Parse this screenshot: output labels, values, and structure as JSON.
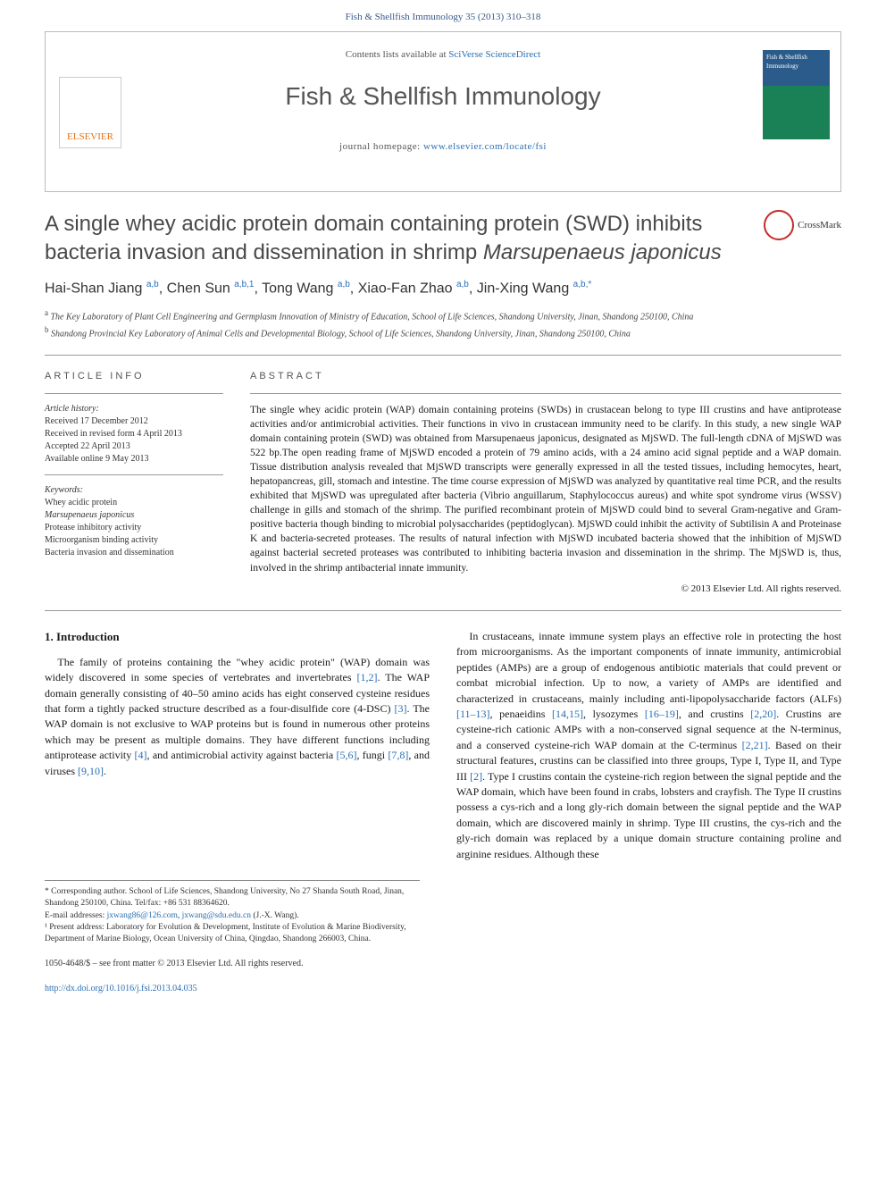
{
  "citation": "Fish & Shellfish Immunology 35 (2013) 310–318",
  "masthead": {
    "contents_line_prefix": "Contents lists available at ",
    "contents_link": "SciVerse ScienceDirect",
    "journal_name": "Fish & Shellfish Immunology",
    "homepage_prefix": "journal homepage: ",
    "homepage_link": "www.elsevier.com/locate/fsi",
    "elsevier_label": "ELSEVIER",
    "thumb_title": "Fish & Shellfish Immunology"
  },
  "title": {
    "line1": "A single whey acidic protein domain containing protein (SWD) inhibits bacteria invasion and dissemination in shrimp ",
    "italic": "Marsupenaeus japonicus"
  },
  "crossmark_label": "CrossMark",
  "authors_html": "Hai-Shan Jiang <sup>a,b</sup>, Chen Sun <sup>a,b,1</sup>, Tong Wang <sup>a,b</sup>, Xiao-Fan Zhao <sup>a,b</sup>, Jin-Xing Wang <sup>a,b,*</sup>",
  "affiliations": {
    "a": "The Key Laboratory of Plant Cell Engineering and Germplasm Innovation of Ministry of Education, School of Life Sciences, Shandong University, Jinan, Shandong 250100, China",
    "b": "Shandong Provincial Key Laboratory of Animal Cells and Developmental Biology, School of Life Sciences, Shandong University, Jinan, Shandong 250100, China"
  },
  "labels": {
    "article_info": "ARTICLE INFO",
    "abstract": "ABSTRACT",
    "history": "Article history:",
    "keywords": "Keywords:"
  },
  "history": {
    "received": "Received 17 December 2012",
    "revised": "Received in revised form 4 April 2013",
    "accepted": "Accepted 22 April 2013",
    "online": "Available online 9 May 2013"
  },
  "keywords": [
    "Whey acidic protein",
    "Marsupenaeus japonicus",
    "Protease inhibitory activity",
    "Microorganism binding activity",
    "Bacteria invasion and dissemination"
  ],
  "abstract": "The single whey acidic protein (WAP) domain containing proteins (SWDs) in crustacean belong to type III crustins and have antiprotease activities and/or antimicrobial activities. Their functions in vivo in crustacean immunity need to be clarify. In this study, a new single WAP domain containing protein (SWD) was obtained from Marsupenaeus japonicus, designated as MjSWD. The full-length cDNA of MjSWD was 522 bp.The open reading frame of MjSWD encoded a protein of 79 amino acids, with a 24 amino acid signal peptide and a WAP domain. Tissue distribution analysis revealed that MjSWD transcripts were generally expressed in all the tested tissues, including hemocytes, heart, hepatopancreas, gill, stomach and intestine. The time course expression of MjSWD was analyzed by quantitative real time PCR, and the results exhibited that MjSWD was upregulated after bacteria (Vibrio anguillarum, Staphylococcus aureus) and white spot syndrome virus (WSSV) challenge in gills and stomach of the shrimp. The purified recombinant protein of MjSWD could bind to several Gram-negative and Gram-positive bacteria though binding to microbial polysaccharides (peptidoglycan). MjSWD could inhibit the activity of Subtilisin A and Proteinase K and bacteria-secreted proteases. The results of natural infection with MjSWD incubated bacteria showed that the inhibition of MjSWD against bacterial secreted proteases was contributed to inhibiting bacteria invasion and dissemination in the shrimp. The MjSWD is, thus, involved in the shrimp antibacterial innate immunity.",
  "copyright": "© 2013 Elsevier Ltd. All rights reserved.",
  "section1": {
    "heading": "1. Introduction",
    "col1": "The family of proteins containing the \"whey acidic protein\" (WAP) domain was widely discovered in some species of vertebrates and invertebrates [1,2]. The WAP domain generally consisting of 40–50 amino acids has eight conserved cysteine residues that form a tightly packed structure described as a four-disulfide core (4-DSC) [3]. The WAP domain is not exclusive to WAP proteins but is found in numerous other proteins which may be present as multiple domains. They have different functions including antiprotease activity [4], and antimicrobial activity against bacteria [5,6], fungi [7,8], and viruses [9,10].",
    "col2": "In crustaceans, innate immune system plays an effective role in protecting the host from microorganisms. As the important components of innate immunity, antimicrobial peptides (AMPs) are a group of endogenous antibiotic materials that could prevent or combat microbial infection. Up to now, a variety of AMPs are identified and characterized in crustaceans, mainly including anti-lipopolysaccharide factors (ALFs) [11–13], penaeidins [14,15], lysozymes [16–19], and crustins [2,20]. Crustins are cysteine-rich cationic AMPs with a non-conserved signal sequence at the N-terminus, and a conserved cysteine-rich WAP domain at the C-terminus [2,21]. Based on their structural features, crustins can be classified into three groups, Type I, Type II, and Type III [2]. Type I crustins contain the cysteine-rich region between the signal peptide and the WAP domain, which have been found in crabs, lobsters and crayfish. The Type II crustins possess a cys-rich and a long gly-rich domain between the signal peptide and the WAP domain, which are discovered mainly in shrimp. Type III crustins, the cys-rich and the gly-rich domain was replaced by a unique domain structure containing proline and arginine residues. Although these"
  },
  "footnotes": {
    "corr": "* Corresponding author. School of Life Sciences, Shandong University, No 27 Shanda South Road, Jinan, Shandong 250100, China. Tel/fax: +86 531 88364620.",
    "email_label": "E-mail addresses: ",
    "email1": "jxwang86@126.com",
    "email2": "jxwang@sdu.edu.cn",
    "email_suffix": " (J.-X. Wang).",
    "present": "¹ Present address: Laboratory for Evolution & Development, Institute of Evolution & Marine Biodiversity, Department of Marine Biology, Ocean University of China, Qingdao, Shandong 266003, China."
  },
  "footer": {
    "line1": "1050-4648/$ – see front matter © 2013 Elsevier Ltd. All rights reserved.",
    "doi": "http://dx.doi.org/10.1016/j.fsi.2013.04.035"
  },
  "colors": {
    "link": "#2a6fb5",
    "text": "#1a1a1a",
    "heading": "#484848",
    "rule": "#999999",
    "elsevier_orange": "#e67315"
  }
}
